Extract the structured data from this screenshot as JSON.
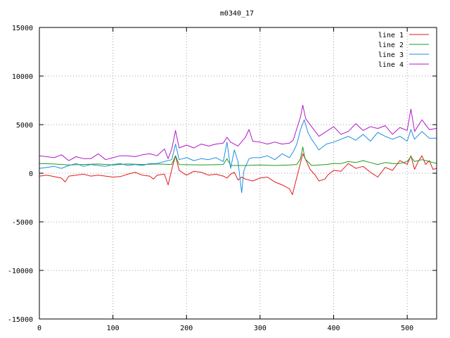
{
  "chart_data": {
    "type": "line",
    "title": "m0340_17",
    "xlabel": "",
    "ylabel": "",
    "xlim": [
      0,
      540
    ],
    "ylim": [
      -15000,
      15000
    ],
    "xticks": [
      0,
      100,
      200,
      300,
      400,
      500
    ],
    "yticks": [
      -15000,
      -10000,
      -5000,
      0,
      5000,
      10000,
      15000
    ],
    "xtick_labels": [
      "0",
      "100",
      "200",
      "300",
      "400",
      "500"
    ],
    "ytick_labels": [
      "-15000",
      "-10000",
      "-5000",
      "0",
      "5000",
      "10000",
      "15000"
    ],
    "grid": true,
    "legend_position": "top-right",
    "series": [
      {
        "name": "line 1",
        "color": "#e41a1c",
        "points": [
          [
            0,
            -300
          ],
          [
            10,
            -200
          ],
          [
            20,
            -350
          ],
          [
            30,
            -500
          ],
          [
            35,
            -900
          ],
          [
            40,
            -300
          ],
          [
            50,
            -200
          ],
          [
            60,
            -100
          ],
          [
            70,
            -300
          ],
          [
            80,
            -200
          ],
          [
            90,
            -300
          ],
          [
            100,
            -400
          ],
          [
            110,
            -350
          ],
          [
            120,
            -100
          ],
          [
            130,
            100
          ],
          [
            140,
            -200
          ],
          [
            150,
            -300
          ],
          [
            155,
            -600
          ],
          [
            160,
            -200
          ],
          [
            170,
            -100
          ],
          [
            175,
            -1200
          ],
          [
            180,
            400
          ],
          [
            185,
            1800
          ],
          [
            190,
            300
          ],
          [
            200,
            -200
          ],
          [
            210,
            200
          ],
          [
            220,
            100
          ],
          [
            230,
            -200
          ],
          [
            240,
            -100
          ],
          [
            250,
            -300
          ],
          [
            255,
            -500
          ],
          [
            260,
            -100
          ],
          [
            265,
            100
          ],
          [
            270,
            -700
          ],
          [
            275,
            -400
          ],
          [
            280,
            -600
          ],
          [
            290,
            -800
          ],
          [
            300,
            -500
          ],
          [
            310,
            -400
          ],
          [
            320,
            -900
          ],
          [
            330,
            -1200
          ],
          [
            340,
            -1600
          ],
          [
            344,
            -2200
          ],
          [
            348,
            -1000
          ],
          [
            352,
            200
          ],
          [
            358,
            2000
          ],
          [
            362,
            1400
          ],
          [
            368,
            400
          ],
          [
            375,
            -200
          ],
          [
            380,
            -800
          ],
          [
            388,
            -600
          ],
          [
            392,
            -200
          ],
          [
            400,
            300
          ],
          [
            410,
            200
          ],
          [
            420,
            1000
          ],
          [
            430,
            500
          ],
          [
            440,
            700
          ],
          [
            450,
            100
          ],
          [
            460,
            -400
          ],
          [
            470,
            600
          ],
          [
            480,
            300
          ],
          [
            490,
            1300
          ],
          [
            500,
            900
          ],
          [
            505,
            1800
          ],
          [
            510,
            400
          ],
          [
            515,
            1200
          ],
          [
            520,
            1800
          ],
          [
            525,
            900
          ],
          [
            530,
            1300
          ],
          [
            535,
            400
          ],
          [
            540,
            500
          ]
        ]
      },
      {
        "name": "line 2",
        "color": "#1a9c1a",
        "points": [
          [
            0,
            1000
          ],
          [
            20,
            950
          ],
          [
            40,
            850
          ],
          [
            60,
            900
          ],
          [
            80,
            950
          ],
          [
            100,
            850
          ],
          [
            120,
            950
          ],
          [
            140,
            900
          ],
          [
            160,
            950
          ],
          [
            180,
            900
          ],
          [
            185,
            1800
          ],
          [
            190,
            900
          ],
          [
            220,
            850
          ],
          [
            250,
            900
          ],
          [
            255,
            1500
          ],
          [
            260,
            800
          ],
          [
            280,
            800
          ],
          [
            300,
            850
          ],
          [
            320,
            800
          ],
          [
            340,
            850
          ],
          [
            350,
            900
          ],
          [
            355,
            1500
          ],
          [
            358,
            2700
          ],
          [
            361,
            1500
          ],
          [
            370,
            800
          ],
          [
            390,
            900
          ],
          [
            400,
            1000
          ],
          [
            410,
            1000
          ],
          [
            420,
            1200
          ],
          [
            430,
            1100
          ],
          [
            440,
            1300
          ],
          [
            450,
            1100
          ],
          [
            460,
            900
          ],
          [
            470,
            1100
          ],
          [
            480,
            1000
          ],
          [
            490,
            1000
          ],
          [
            500,
            1200
          ],
          [
            505,
            1700
          ],
          [
            510,
            1200
          ],
          [
            520,
            1400
          ],
          [
            530,
            1200
          ],
          [
            540,
            1000
          ]
        ]
      },
      {
        "name": "line 3",
        "color": "#1e8fe0",
        "points": [
          [
            0,
            500
          ],
          [
            10,
            600
          ],
          [
            20,
            700
          ],
          [
            30,
            500
          ],
          [
            40,
            800
          ],
          [
            50,
            1000
          ],
          [
            60,
            700
          ],
          [
            70,
            900
          ],
          [
            80,
            800
          ],
          [
            90,
            700
          ],
          [
            100,
            900
          ],
          [
            110,
            1000
          ],
          [
            120,
            800
          ],
          [
            130,
            900
          ],
          [
            140,
            800
          ],
          [
            150,
            1000
          ],
          [
            160,
            1000
          ],
          [
            170,
            1200
          ],
          [
            180,
            1400
          ],
          [
            185,
            3000
          ],
          [
            190,
            1400
          ],
          [
            200,
            1600
          ],
          [
            210,
            1300
          ],
          [
            220,
            1500
          ],
          [
            230,
            1400
          ],
          [
            240,
            1600
          ],
          [
            250,
            1200
          ],
          [
            255,
            3200
          ],
          [
            260,
            500
          ],
          [
            265,
            2400
          ],
          [
            270,
            1200
          ],
          [
            275,
            -2000
          ],
          [
            278,
            300
          ],
          [
            285,
            1500
          ],
          [
            290,
            1600
          ],
          [
            300,
            1600
          ],
          [
            310,
            1800
          ],
          [
            320,
            1400
          ],
          [
            330,
            2000
          ],
          [
            340,
            1600
          ],
          [
            345,
            2200
          ],
          [
            350,
            3000
          ],
          [
            355,
            4500
          ],
          [
            360,
            5500
          ],
          [
            365,
            4200
          ],
          [
            370,
            3500
          ],
          [
            380,
            2400
          ],
          [
            390,
            3000
          ],
          [
            400,
            3200
          ],
          [
            410,
            3500
          ],
          [
            420,
            3800
          ],
          [
            430,
            3400
          ],
          [
            440,
            4000
          ],
          [
            450,
            3300
          ],
          [
            460,
            4200
          ],
          [
            470,
            3800
          ],
          [
            480,
            3500
          ],
          [
            490,
            3800
          ],
          [
            500,
            3300
          ],
          [
            505,
            4500
          ],
          [
            510,
            3500
          ],
          [
            520,
            4300
          ],
          [
            530,
            3600
          ],
          [
            540,
            3600
          ]
        ]
      },
      {
        "name": "line 4",
        "color": "#b019c8",
        "points": [
          [
            0,
            1800
          ],
          [
            10,
            1700
          ],
          [
            20,
            1600
          ],
          [
            30,
            1900
          ],
          [
            40,
            1300
          ],
          [
            50,
            1700
          ],
          [
            60,
            1500
          ],
          [
            70,
            1500
          ],
          [
            80,
            2000
          ],
          [
            90,
            1400
          ],
          [
            100,
            1600
          ],
          [
            110,
            1800
          ],
          [
            120,
            1800
          ],
          [
            130,
            1700
          ],
          [
            140,
            1900
          ],
          [
            150,
            2000
          ],
          [
            160,
            1800
          ],
          [
            170,
            2500
          ],
          [
            175,
            1500
          ],
          [
            180,
            2500
          ],
          [
            185,
            4400
          ],
          [
            190,
            2600
          ],
          [
            200,
            2900
          ],
          [
            210,
            2600
          ],
          [
            220,
            3000
          ],
          [
            230,
            2800
          ],
          [
            240,
            3000
          ],
          [
            250,
            3100
          ],
          [
            255,
            3700
          ],
          [
            260,
            3200
          ],
          [
            270,
            2800
          ],
          [
            280,
            3700
          ],
          [
            285,
            4500
          ],
          [
            290,
            3300
          ],
          [
            300,
            3200
          ],
          [
            310,
            3000
          ],
          [
            320,
            3200
          ],
          [
            330,
            3000
          ],
          [
            340,
            3100
          ],
          [
            345,
            3400
          ],
          [
            350,
            4600
          ],
          [
            355,
            5800
          ],
          [
            358,
            7000
          ],
          [
            362,
            5600
          ],
          [
            370,
            4800
          ],
          [
            380,
            3800
          ],
          [
            390,
            4300
          ],
          [
            400,
            4800
          ],
          [
            410,
            4000
          ],
          [
            420,
            4300
          ],
          [
            430,
            5100
          ],
          [
            440,
            4400
          ],
          [
            450,
            4800
          ],
          [
            460,
            4600
          ],
          [
            470,
            4900
          ],
          [
            480,
            4000
          ],
          [
            490,
            4700
          ],
          [
            500,
            4400
          ],
          [
            505,
            6600
          ],
          [
            510,
            4300
          ],
          [
            520,
            5500
          ],
          [
            530,
            4500
          ],
          [
            540,
            4600
          ]
        ]
      }
    ]
  }
}
